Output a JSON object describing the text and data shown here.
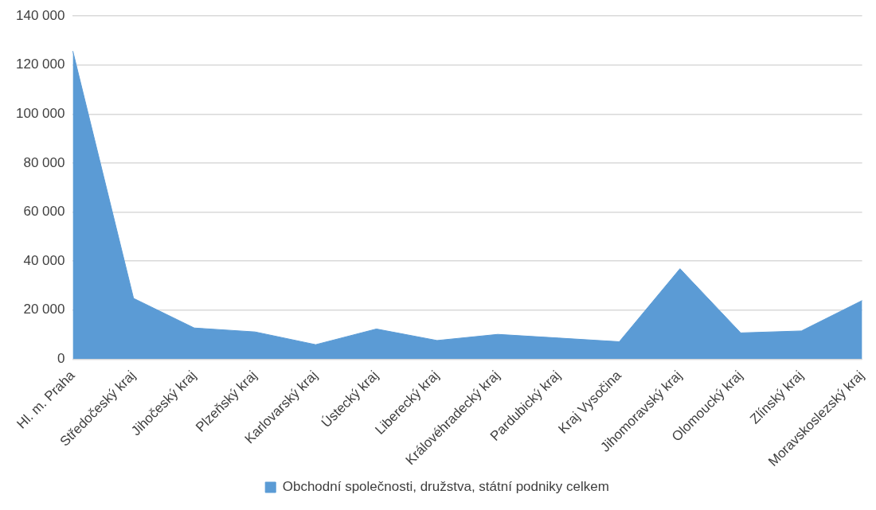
{
  "chart_data": {
    "type": "area",
    "categories": [
      "Hl. m. Praha",
      "Středočeský kraj",
      "Jihočeský kraj",
      "Plzeňský kraj",
      "Karlovarský kraj",
      "Ústecký kraj",
      "Liberecký kraj",
      "Královéhradecký kraj",
      "Pardubický kraj",
      "Kraj Vysočina",
      "Jihomoravský kraj",
      "Olomoucký kraj",
      "Zlínský kraj",
      "Moravskoslezský kraj"
    ],
    "series": [
      {
        "name": "Obchodní společnosti, družstva, státní podniky celkem",
        "color": "#5b9bd5",
        "values": [
          125700,
          24800,
          12700,
          11100,
          5900,
          12300,
          7600,
          10100,
          8600,
          7100,
          36900,
          10700,
          11500,
          23900
        ]
      }
    ],
    "ylim": [
      0,
      140000
    ],
    "yticks": [
      {
        "value": 0,
        "label": "0"
      },
      {
        "value": 20000,
        "label": "20 000"
      },
      {
        "value": 40000,
        "label": "40 000"
      },
      {
        "value": 60000,
        "label": "60 000"
      },
      {
        "value": 80000,
        "label": "80 000"
      },
      {
        "value": 100000,
        "label": "100 000"
      },
      {
        "value": 120000,
        "label": "120 000"
      },
      {
        "value": 140000,
        "label": "140 000"
      }
    ],
    "grid": "y",
    "legend": "bottom"
  }
}
